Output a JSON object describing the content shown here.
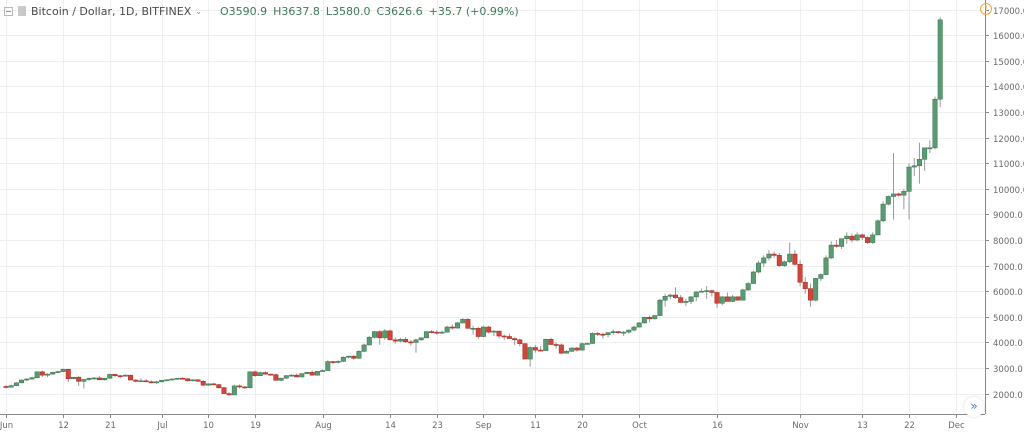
{
  "legend": {
    "symbol": "Bitcoin / Dollar, 1D, BITFINEX",
    "open": "O3590.9",
    "high": "H3637.8",
    "low": "L3580.0",
    "close": "C3626.6",
    "change": "+35.7 (+0.99%)",
    "icons": [
      "collapse-icon",
      "series-icon",
      "chevron-down-icon"
    ]
  },
  "alert_icon": "!",
  "scroll_button": "»",
  "colors": {
    "up": "#5b9b74",
    "up_border": "#3e7a56",
    "down": "#d2453a",
    "down_border": "#a8322a",
    "wick": "#9a9a9a",
    "grid": "#efefef",
    "axis_line": "#8a8a8a",
    "axis_text": "#6a6a6a",
    "alert": "#f2a345"
  },
  "chart_data": {
    "type": "candlestick",
    "title": "Bitcoin / Dollar, 1D, BITFINEX",
    "xlabel": "",
    "ylabel": "",
    "ylim": [
      1000,
      17300
    ],
    "y_ticks": [
      "17000.0",
      "16000.0",
      "15000.0",
      "14000.0",
      "13000.0",
      "12000.0",
      "11000.0",
      "10000.0",
      "9000.0",
      "8000.0",
      "7000.0",
      "6000.0",
      "5000.0",
      "4000.0",
      "3000.0",
      "2000.0"
    ],
    "x_ticks": [
      {
        "label": "Jun",
        "day": 0
      },
      {
        "label": "12",
        "day": 11
      },
      {
        "label": "21",
        "day": 20
      },
      {
        "label": "Jul",
        "day": 30
      },
      {
        "label": "10",
        "day": 39
      },
      {
        "label": "19",
        "day": 48
      },
      {
        "label": "Aug",
        "day": 61
      },
      {
        "label": "14",
        "day": 74
      },
      {
        "label": "23",
        "day": 83
      },
      {
        "label": "Sep",
        "day": 92
      },
      {
        "label": "11",
        "day": 102
      },
      {
        "label": "20",
        "day": 111
      },
      {
        "label": "Oct",
        "day": 122
      },
      {
        "label": "16",
        "day": 137
      },
      {
        "label": "Nov",
        "day": 153
      },
      {
        "label": "13",
        "day": 165
      },
      {
        "label": "22",
        "day": 174
      },
      {
        "label": "Dec",
        "day": 183
      }
    ],
    "grid": true,
    "start_date": "Jun 1",
    "interval": "1D",
    "ohlc": [
      [
        2280,
        2320,
        2200,
        2250
      ],
      [
        2250,
        2350,
        2230,
        2310
      ],
      [
        2310,
        2450,
        2290,
        2420
      ],
      [
        2420,
        2560,
        2400,
        2530
      ],
      [
        2530,
        2600,
        2480,
        2570
      ],
      [
        2570,
        2650,
        2540,
        2620
      ],
      [
        2620,
        2870,
        2600,
        2850
      ],
      [
        2850,
        2900,
        2650,
        2720
      ],
      [
        2720,
        2800,
        2640,
        2760
      ],
      [
        2760,
        2850,
        2740,
        2830
      ],
      [
        2830,
        2900,
        2800,
        2860
      ],
      [
        2860,
        2980,
        2840,
        2950
      ],
      [
        2950,
        2960,
        2450,
        2580
      ],
      [
        2580,
        2650,
        2560,
        2640
      ],
      [
        2640,
        2680,
        2300,
        2480
      ],
      [
        2480,
        2580,
        2200,
        2550
      ],
      [
        2550,
        2630,
        2500,
        2600
      ],
      [
        2600,
        2650,
        2540,
        2610
      ],
      [
        2610,
        2680,
        2560,
        2540
      ],
      [
        2540,
        2620,
        2500,
        2600
      ],
      [
        2600,
        2780,
        2580,
        2750
      ],
      [
        2750,
        2770,
        2640,
        2700
      ],
      [
        2700,
        2730,
        2600,
        2680
      ],
      [
        2680,
        2760,
        2660,
        2720
      ],
      [
        2720,
        2730,
        2540,
        2530
      ],
      [
        2530,
        2560,
        2440,
        2480
      ],
      [
        2480,
        2600,
        2460,
        2500
      ],
      [
        2500,
        2560,
        2470,
        2460
      ],
      [
        2460,
        2520,
        2400,
        2430
      ],
      [
        2430,
        2500,
        2380,
        2460
      ],
      [
        2460,
        2540,
        2440,
        2520
      ],
      [
        2520,
        2560,
        2480,
        2540
      ],
      [
        2540,
        2600,
        2510,
        2570
      ],
      [
        2570,
        2610,
        2540,
        2600
      ],
      [
        2600,
        2640,
        2560,
        2580
      ],
      [
        2580,
        2600,
        2480,
        2500
      ],
      [
        2500,
        2560,
        2470,
        2540
      ],
      [
        2540,
        2560,
        2470,
        2480
      ],
      [
        2480,
        2520,
        2300,
        2330
      ],
      [
        2330,
        2400,
        2300,
        2380
      ],
      [
        2380,
        2420,
        2330,
        2350
      ],
      [
        2350,
        2380,
        2190,
        2230
      ],
      [
        2230,
        2260,
        2100,
        2000
      ],
      [
        2000,
        2050,
        1900,
        1950
      ],
      [
        1950,
        2350,
        1940,
        2300
      ],
      [
        2300,
        2350,
        2200,
        2260
      ],
      [
        2260,
        2300,
        2200,
        2230
      ],
      [
        2230,
        2880,
        2200,
        2850
      ],
      [
        2850,
        2900,
        2650,
        2700
      ],
      [
        2700,
        2860,
        2680,
        2820
      ],
      [
        2820,
        2870,
        2740,
        2760
      ],
      [
        2760,
        2780,
        2700,
        2740
      ],
      [
        2740,
        2780,
        2680,
        2520
      ],
      [
        2520,
        2620,
        2480,
        2600
      ],
      [
        2600,
        2730,
        2580,
        2700
      ],
      [
        2700,
        2760,
        2690,
        2720
      ],
      [
        2720,
        2780,
        2640,
        2650
      ],
      [
        2650,
        2800,
        2630,
        2780
      ],
      [
        2780,
        2850,
        2760,
        2830
      ],
      [
        2830,
        2900,
        2810,
        2720
      ],
      [
        2720,
        2880,
        2700,
        2870
      ],
      [
        2870,
        2950,
        2850,
        2900
      ],
      [
        2900,
        3300,
        2880,
        3250
      ],
      [
        3250,
        3280,
        3150,
        3220
      ],
      [
        3220,
        3300,
        3180,
        3260
      ],
      [
        3260,
        3450,
        3240,
        3420
      ],
      [
        3420,
        3480,
        3380,
        3460
      ],
      [
        3460,
        3500,
        3320,
        3380
      ],
      [
        3380,
        3700,
        3360,
        3650
      ],
      [
        3650,
        3950,
        3620,
        3900
      ],
      [
        3900,
        4250,
        3880,
        4200
      ],
      [
        4200,
        4450,
        4150,
        4420
      ],
      [
        4420,
        4480,
        3900,
        4180
      ],
      [
        4180,
        4520,
        4100,
        4450
      ],
      [
        4450,
        4500,
        4100,
        4100
      ],
      [
        4100,
        4200,
        3950,
        4050
      ],
      [
        4050,
        4180,
        4000,
        4120
      ],
      [
        4120,
        4200,
        3980,
        4020
      ],
      [
        4020,
        4100,
        3880,
        4000
      ],
      [
        4000,
        4150,
        3600,
        4100
      ],
      [
        4100,
        4200,
        4050,
        4180
      ],
      [
        4180,
        4450,
        4160,
        4420
      ],
      [
        4420,
        4480,
        4350,
        4400
      ],
      [
        4400,
        4480,
        4300,
        4380
      ],
      [
        4380,
        4460,
        4340,
        4400
      ],
      [
        4400,
        4650,
        4380,
        4600
      ],
      [
        4600,
        4700,
        4500,
        4560
      ],
      [
        4560,
        4800,
        4540,
        4760
      ],
      [
        4760,
        4950,
        4740,
        4900
      ],
      [
        4900,
        4950,
        4550,
        4550
      ],
      [
        4550,
        4650,
        4300,
        4550
      ],
      [
        4550,
        4600,
        4150,
        4230
      ],
      [
        4230,
        4650,
        4200,
        4600
      ],
      [
        4600,
        4640,
        4350,
        4400
      ],
      [
        4400,
        4480,
        4250,
        4440
      ],
      [
        4440,
        4450,
        4150,
        4250
      ],
      [
        4250,
        4300,
        4100,
        4230
      ],
      [
        4230,
        4350,
        4200,
        4150
      ],
      [
        4150,
        4200,
        3900,
        4100
      ],
      [
        4100,
        4150,
        3850,
        3950
      ],
      [
        3950,
        3980,
        3500,
        3350
      ],
      [
        3350,
        3850,
        3050,
        3800
      ],
      [
        3800,
        3900,
        3600,
        3700
      ],
      [
        3700,
        3850,
        3650,
        3680
      ],
      [
        3680,
        4150,
        3660,
        4120
      ],
      [
        4120,
        4180,
        3900,
        3920
      ],
      [
        3920,
        4000,
        3760,
        3900
      ],
      [
        3900,
        3960,
        3540,
        3580
      ],
      [
        3580,
        3700,
        3560,
        3650
      ],
      [
        3650,
        3800,
        3630,
        3780
      ],
      [
        3780,
        3820,
        3640,
        3700
      ],
      [
        3700,
        4000,
        3680,
        3950
      ],
      [
        3950,
        4000,
        3920,
        3960
      ],
      [
        3960,
        4400,
        3940,
        4350
      ],
      [
        4350,
        4400,
        4250,
        4320
      ],
      [
        4320,
        4380,
        4150,
        4300
      ],
      [
        4300,
        4400,
        4200,
        4380
      ],
      [
        4380,
        4500,
        4300,
        4420
      ],
      [
        4420,
        4450,
        4340,
        4380
      ],
      [
        4380,
        4450,
        4250,
        4400
      ],
      [
        4400,
        4500,
        4340,
        4480
      ],
      [
        4480,
        4650,
        4440,
        4600
      ],
      [
        4600,
        4800,
        4580,
        4760
      ],
      [
        4760,
        5000,
        4740,
        4980
      ],
      [
        4980,
        5050,
        4780,
        4920
      ],
      [
        4920,
        5050,
        4900,
        5050
      ],
      [
        5050,
        5700,
        5040,
        5650
      ],
      [
        5650,
        5900,
        5400,
        5800
      ],
      [
        5800,
        5900,
        5700,
        5850
      ],
      [
        5850,
        6150,
        5700,
        5750
      ],
      [
        5750,
        5850,
        5650,
        5560
      ],
      [
        5560,
        5700,
        5420,
        5600
      ],
      [
        5600,
        5800,
        5500,
        5780
      ],
      [
        5780,
        6000,
        5600,
        5970
      ],
      [
        5970,
        6100,
        5950,
        6000
      ],
      [
        6000,
        6200,
        5700,
        6020
      ],
      [
        6020,
        6050,
        5800,
        5950
      ],
      [
        5950,
        6000,
        5350,
        5530
      ],
      [
        5530,
        5800,
        5450,
        5780
      ],
      [
        5780,
        5950,
        5700,
        5600
      ],
      [
        5600,
        5850,
        5580,
        5780
      ],
      [
        5780,
        5800,
        5700,
        5650
      ],
      [
        5650,
        6100,
        5630,
        6050
      ],
      [
        6050,
        6350,
        6000,
        6300
      ],
      [
        6300,
        6800,
        6280,
        6750
      ],
      [
        6750,
        7200,
        6700,
        7100
      ],
      [
        7100,
        7400,
        6950,
        7300
      ],
      [
        7300,
        7600,
        7200,
        7450
      ],
      [
        7450,
        7550,
        7300,
        7400
      ],
      [
        7400,
        7500,
        6950,
        7000
      ],
      [
        7000,
        7200,
        6950,
        7150
      ],
      [
        7150,
        7900,
        7100,
        7450
      ],
      [
        7450,
        7600,
        7000,
        7050
      ],
      [
        7050,
        7200,
        6200,
        6350
      ],
      [
        6350,
        6550,
        5900,
        6100
      ],
      [
        6100,
        6300,
        5400,
        5650
      ],
      [
        5650,
        6500,
        5600,
        6500
      ],
      [
        6500,
        6700,
        6400,
        6650
      ],
      [
        6650,
        7400,
        6630,
        7300
      ],
      [
        7300,
        7950,
        7250,
        7800
      ],
      [
        7800,
        8000,
        7700,
        7750
      ],
      [
        7750,
        8000,
        7650,
        8050
      ],
      [
        8050,
        8300,
        7850,
        8150
      ],
      [
        8150,
        8250,
        7900,
        8000
      ],
      [
        8000,
        8300,
        7950,
        8200
      ],
      [
        8200,
        8250,
        8000,
        8100
      ],
      [
        8100,
        8150,
        7850,
        7900
      ],
      [
        7900,
        8300,
        7850,
        8200
      ],
      [
        8200,
        8800,
        8180,
        8750
      ],
      [
        8750,
        9500,
        8700,
        9400
      ],
      [
        9400,
        9750,
        9350,
        9700
      ],
      [
        9700,
        11400,
        8800,
        9800
      ],
      [
        9800,
        9850,
        9700,
        9750
      ],
      [
        9750,
        10000,
        9200,
        9900
      ],
      [
        9900,
        11000,
        8800,
        10850
      ],
      [
        10850,
        11200,
        10500,
        10900
      ],
      [
        10900,
        11800,
        10200,
        11150
      ],
      [
        11150,
        11600,
        10700,
        11600
      ],
      [
        11600,
        11900,
        11400,
        11600
      ],
      [
        11600,
        13600,
        11550,
        13500
      ],
      [
        13500,
        16700,
        13200,
        16600
      ]
    ]
  }
}
